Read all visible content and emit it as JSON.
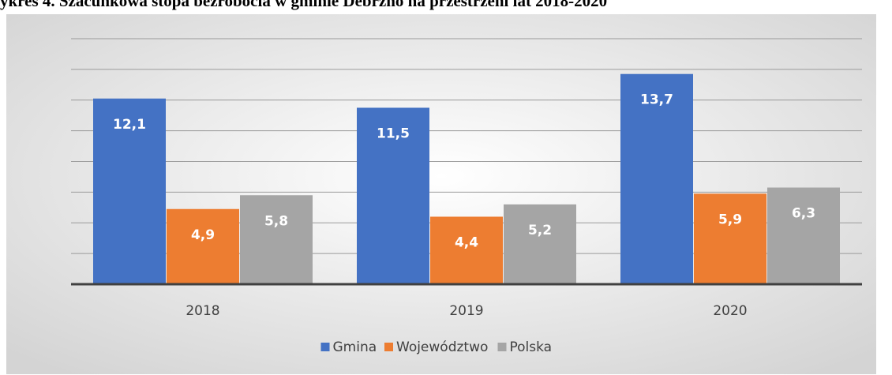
{
  "chart_data": {
    "type": "bar",
    "title": "ykres 4. Szacunkowa stopa bezrobocia w gminie Debrzno na przestrzeni lat 2018-2020",
    "categories": [
      "2018",
      "2019",
      "2020"
    ],
    "series": [
      {
        "name": "Gmina",
        "color": "#4472c4",
        "values": [
          12.1,
          11.5,
          13.7
        ],
        "value_labels": [
          "12,1",
          "11,5",
          "13,7"
        ]
      },
      {
        "name": "Województwo",
        "color": "#ed7d31",
        "values": [
          4.9,
          4.4,
          5.9
        ],
        "value_labels": [
          "4,9",
          "4,4",
          "5,9"
        ]
      },
      {
        "name": "Polska",
        "color": "#a5a5a5",
        "values": [
          5.8,
          5.2,
          6.3
        ],
        "value_labels": [
          "5,8",
          "5,2",
          "6,3"
        ]
      }
    ],
    "ylim": [
      0,
      16
    ],
    "yticks": [
      0,
      2,
      4,
      6,
      8,
      10,
      12,
      14,
      16
    ],
    "grid": true,
    "legend": "bottom"
  }
}
